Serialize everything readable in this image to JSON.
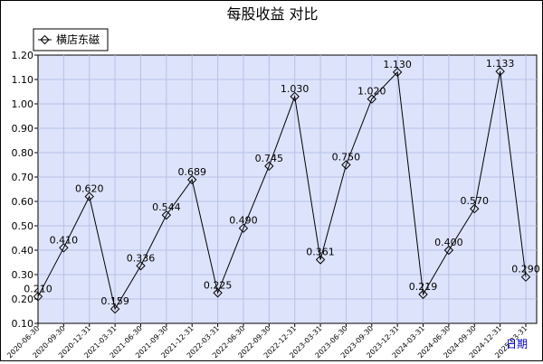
{
  "chart_data": {
    "type": "line",
    "title": "每股收益  对比",
    "xlabel": "日期",
    "ylabel": "",
    "ylim": [
      0.1,
      1.2
    ],
    "yticks": [
      "0.10",
      "0.20",
      "0.30",
      "0.40",
      "0.50",
      "0.60",
      "0.70",
      "0.80",
      "0.90",
      "1.00",
      "1.10",
      "1.20"
    ],
    "grid": true,
    "legend_position": "top-left",
    "categories": [
      "2020-06-30",
      "2020-09-30",
      "2020-12-31",
      "2021-03-31",
      "2021-06-30",
      "2021-09-30",
      "2021-12-31",
      "2022-03-31",
      "2022-06-30",
      "2022-09-30",
      "2022-12-31",
      "2023-03-31",
      "2023-06-30",
      "2023-09-30",
      "2023-12-31",
      "2024-03-31",
      "2024-06-30",
      "2024-09-30",
      "2024-12-31",
      "2025-03-31"
    ],
    "series": [
      {
        "name": "横店东磁",
        "color": "#000000",
        "marker": "diamond",
        "values": [
          0.21,
          0.41,
          0.62,
          0.159,
          0.336,
          0.544,
          0.689,
          0.225,
          0.49,
          0.745,
          1.03,
          0.361,
          0.75,
          1.02,
          1.13,
          0.219,
          0.4,
          0.57,
          1.133,
          0.29
        ],
        "labels": [
          "0.210",
          "0.410",
          "0.620",
          "0.159",
          "0.336",
          "0.544",
          "0.689",
          "0.225",
          "0.490",
          "0.745",
          "1.030",
          "0.361",
          "0.750",
          "1.020",
          "1.130",
          "0.219",
          "0.400",
          "0.570",
          "1.133",
          "0.290"
        ]
      }
    ],
    "colors": {
      "plot_background": "#dde3fb",
      "grid": "#b8c0e6",
      "axis": "#000000",
      "xlabel": "#0000cc"
    }
  }
}
